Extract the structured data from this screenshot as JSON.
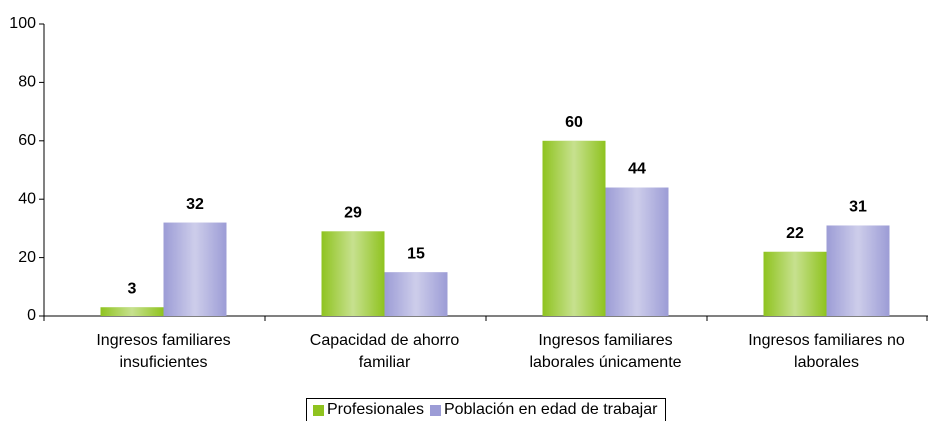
{
  "chart_data": {
    "type": "bar",
    "categories": [
      "Ingresos familiares insuficientes",
      "Capacidad de ahorro familiar",
      "Ingresos familiares laborales únicamente",
      "Ingresos familiares no laborales"
    ],
    "series": [
      {
        "name": "Profesionales",
        "color": "#8fc31f",
        "values": [
          3,
          29,
          60,
          22
        ]
      },
      {
        "name": "Población en edad de trabajar",
        "color": "#9c9cd6",
        "values": [
          32,
          15,
          44,
          31
        ]
      }
    ],
    "ylim": [
      0,
      100
    ],
    "yticks": [
      0,
      20,
      40,
      60,
      80,
      100
    ],
    "grid": false,
    "legend": "bottom"
  }
}
